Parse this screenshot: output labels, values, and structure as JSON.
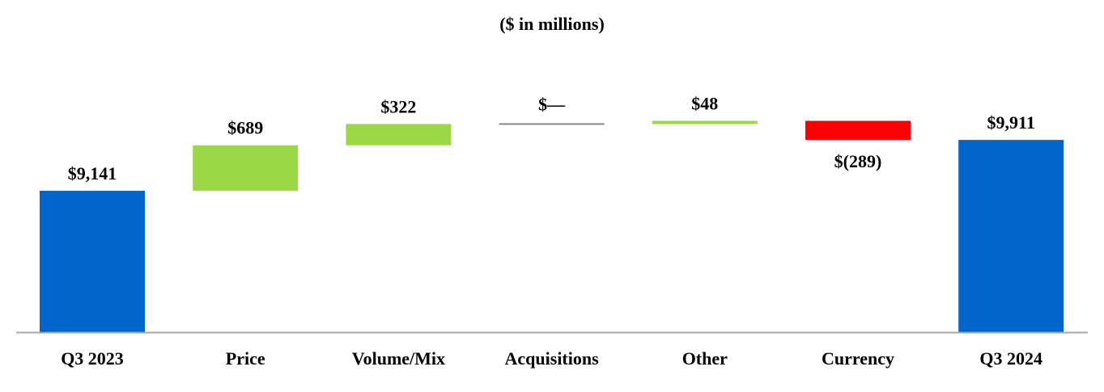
{
  "chart_data": {
    "type": "waterfall",
    "title": "($ in millions)",
    "xlabel": "",
    "ylabel": "",
    "ylim": [
      7000,
      10500
    ],
    "grid": false,
    "categories": [
      "Q3 2023",
      "Price",
      "Volume/Mix",
      "Acquisitions",
      "Other",
      "Currency",
      "Q3 2024"
    ],
    "values": [
      9141,
      689,
      322,
      0,
      48,
      -289,
      9911
    ],
    "kinds": [
      "total",
      "delta",
      "delta",
      "delta",
      "delta",
      "delta",
      "total"
    ],
    "labels": [
      "$9,141",
      "$689",
      "$322",
      "$—",
      "$48",
      "$(289)",
      "$9,911"
    ],
    "colors": {
      "total": "#0066CC",
      "increase": "#9BD845",
      "decrease": "#FF0000",
      "zero": "#888888",
      "axis": "#A6A6A6"
    }
  }
}
